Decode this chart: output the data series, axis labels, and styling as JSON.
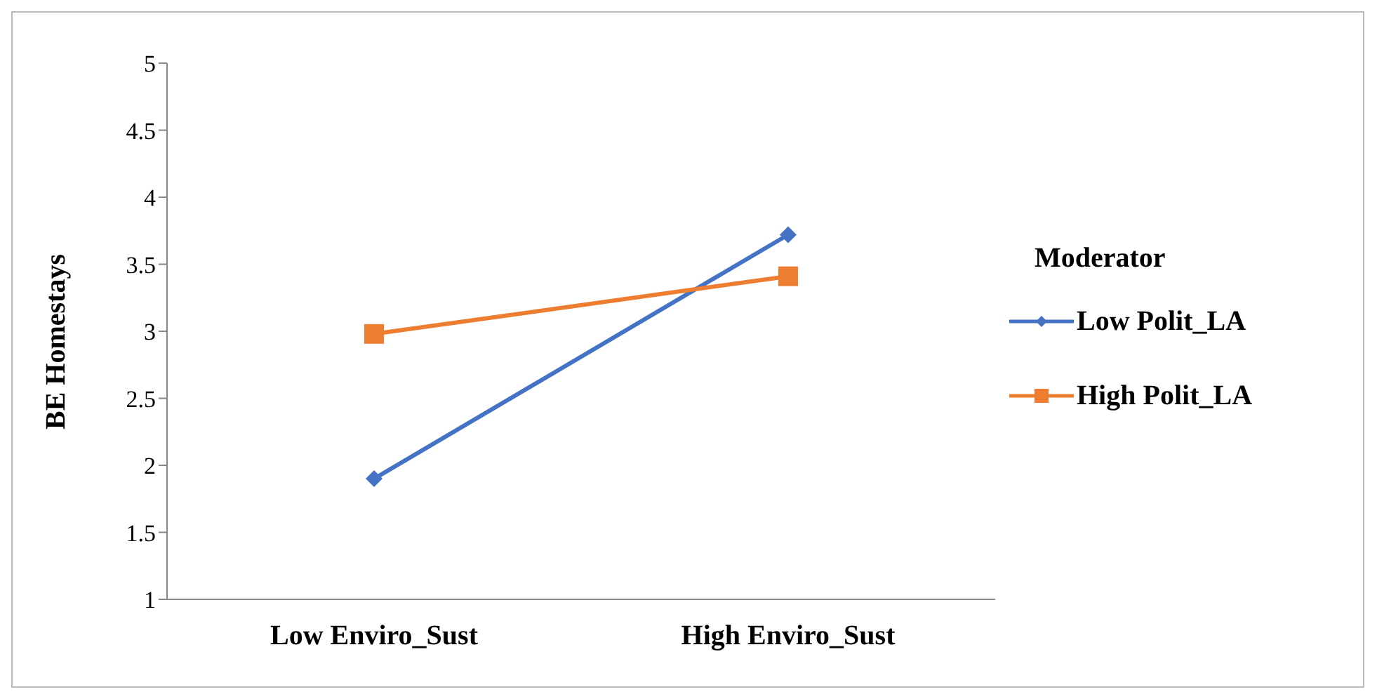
{
  "chart_data": {
    "type": "line",
    "ylabel": "BE Homestays",
    "legend_title": "Moderator",
    "categories": [
      "Low Enviro_Sust",
      "High Enviro_Sust"
    ],
    "series": [
      {
        "name": "Low Polit_LA",
        "color": "#4472c4",
        "marker": "diamond",
        "values": [
          1.9,
          3.72
        ]
      },
      {
        "name": "High Polit_LA",
        "color": "#ed7d31",
        "marker": "square",
        "values": [
          2.98,
          3.41
        ]
      }
    ],
    "ylim": [
      1,
      5
    ],
    "yticks": [
      1,
      1.5,
      2,
      2.5,
      3,
      3.5,
      4,
      4.5,
      5
    ],
    "grid": false,
    "legend": "right"
  }
}
